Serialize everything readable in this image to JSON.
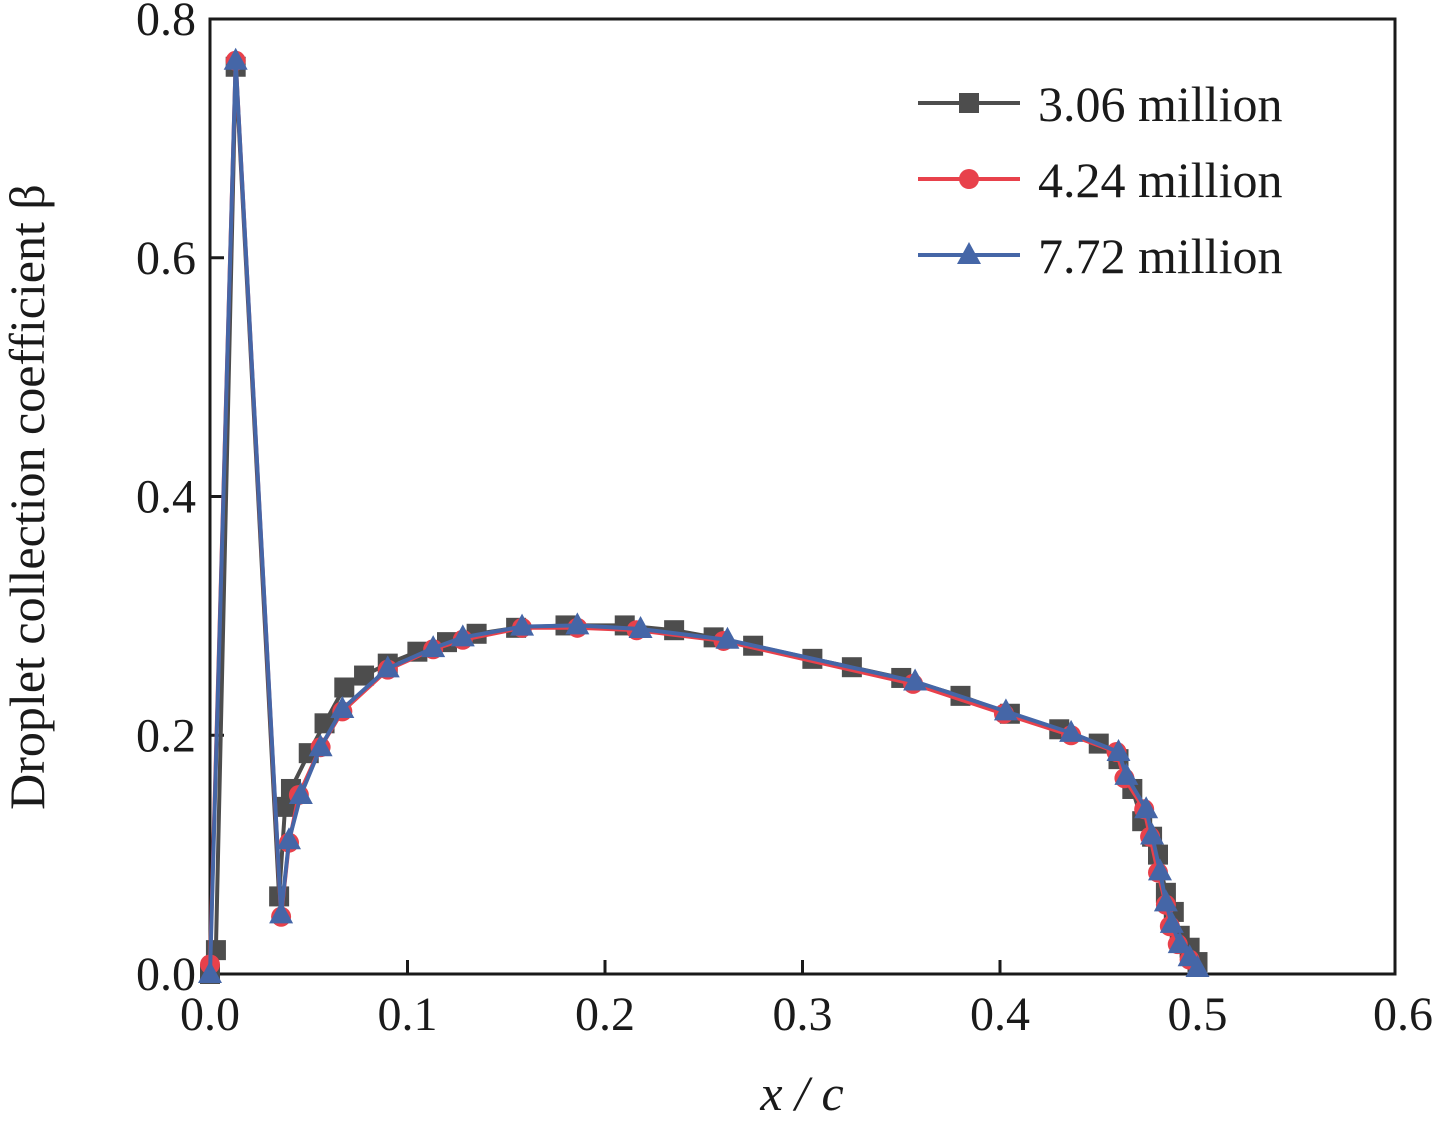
{
  "chart_data": {
    "type": "line",
    "xlabel": "x / c",
    "ylabel": "Droplet collection coefficient β",
    "xlim": [
      0.0,
      0.6
    ],
    "ylim": [
      0.0,
      0.8
    ],
    "xticks": [
      "0.0",
      "0.1",
      "0.2",
      "0.3",
      "0.4",
      "0.5",
      "0.6"
    ],
    "yticks": [
      "0.0",
      "0.2",
      "0.4",
      "0.6",
      "0.8"
    ],
    "grid": false,
    "legend_position": "top-right",
    "series": [
      {
        "name": "3.06 million",
        "color": "#4d4d4d",
        "marker": "square",
        "x": [
          0.0,
          0.003,
          0.013,
          0.035,
          0.038,
          0.041,
          0.05,
          0.058,
          0.068,
          0.078,
          0.09,
          0.105,
          0.12,
          0.135,
          0.155,
          0.18,
          0.21,
          0.235,
          0.255,
          0.275,
          0.305,
          0.325,
          0.35,
          0.38,
          0.405,
          0.43,
          0.45,
          0.46,
          0.467,
          0.472,
          0.477,
          0.48,
          0.484,
          0.488,
          0.491,
          0.496,
          0.5
        ],
        "y": [
          0.0,
          0.02,
          0.76,
          0.065,
          0.14,
          0.155,
          0.185,
          0.21,
          0.24,
          0.25,
          0.26,
          0.27,
          0.278,
          0.285,
          0.29,
          0.292,
          0.292,
          0.288,
          0.282,
          0.275,
          0.264,
          0.257,
          0.248,
          0.233,
          0.218,
          0.205,
          0.193,
          0.18,
          0.155,
          0.128,
          0.115,
          0.1,
          0.068,
          0.052,
          0.032,
          0.022,
          0.01
        ]
      },
      {
        "name": "4.24 million",
        "color": "#e8414b",
        "marker": "circle",
        "x": [
          0.0,
          0.013,
          0.036,
          0.04,
          0.045,
          0.056,
          0.067,
          0.09,
          0.113,
          0.128,
          0.158,
          0.186,
          0.216,
          0.26,
          0.356,
          0.402,
          0.436,
          0.459,
          0.463,
          0.473,
          0.476,
          0.48,
          0.484,
          0.486,
          0.49,
          0.496
        ],
        "y": [
          0.008,
          0.765,
          0.048,
          0.11,
          0.15,
          0.19,
          0.22,
          0.255,
          0.272,
          0.28,
          0.29,
          0.29,
          0.288,
          0.279,
          0.243,
          0.218,
          0.2,
          0.186,
          0.164,
          0.138,
          0.115,
          0.085,
          0.058,
          0.04,
          0.025,
          0.012
        ]
      },
      {
        "name": "7.72 million",
        "color": "#4566a7",
        "marker": "triangle",
        "x": [
          0.0,
          0.013,
          0.036,
          0.04,
          0.046,
          0.056,
          0.067,
          0.09,
          0.113,
          0.128,
          0.158,
          0.186,
          0.218,
          0.262,
          0.357,
          0.403,
          0.436,
          0.46,
          0.464,
          0.474,
          0.477,
          0.481,
          0.484,
          0.487,
          0.491,
          0.496,
          0.5
        ],
        "y": [
          0.0,
          0.765,
          0.05,
          0.112,
          0.15,
          0.19,
          0.222,
          0.256,
          0.273,
          0.282,
          0.291,
          0.292,
          0.289,
          0.28,
          0.245,
          0.22,
          0.202,
          0.186,
          0.166,
          0.138,
          0.116,
          0.086,
          0.06,
          0.042,
          0.025,
          0.014,
          0.005
        ]
      }
    ]
  }
}
